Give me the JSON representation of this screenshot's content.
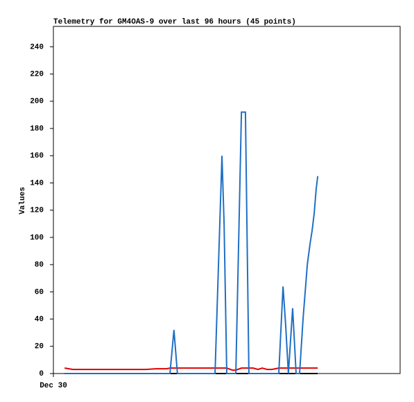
{
  "chart_data": {
    "type": "line",
    "title": "Telemetry for GM4OAS-9 over last 96 hours (45 points)",
    "y_label": "Values",
    "x": [
      4.2,
      7.3,
      11.2,
      15.1,
      19,
      22.9,
      26.8,
      30.7,
      34.6,
      38.5,
      42.4,
      43.7,
      45.2,
      46.5,
      50.2,
      54.1,
      58,
      60.6,
      63.2,
      64,
      65,
      67.1,
      68.4,
      70.5,
      72,
      73.3,
      74.9,
      76.7,
      78.3,
      80.1,
      81.9,
      84.5,
      86.1,
      87.1,
      88.1,
      89.7,
      91,
      92.3,
      93.6,
      95.2,
      96.2,
      97,
      97.8,
      98.5,
      99.1
    ],
    "xlim": [
      0,
      130
    ],
    "xticks": [
      {
        "value": 0,
        "label": "Dec 30"
      }
    ],
    "ylim": [
      0,
      255
    ],
    "yticks": [
      0,
      20,
      40,
      60,
      80,
      100,
      120,
      140,
      160,
      180,
      200,
      220,
      240
    ],
    "grid": false,
    "series": [
      {
        "color": "#000000",
        "values": [
          0,
          0,
          0,
          0,
          0,
          0,
          0,
          0,
          0,
          0,
          0,
          0,
          0,
          0,
          0,
          0,
          0,
          0,
          0,
          0,
          0,
          0,
          0,
          0,
          0,
          0,
          0,
          0,
          0,
          0,
          0,
          0,
          0,
          0,
          0,
          0,
          0,
          0,
          0,
          0,
          0,
          0,
          0,
          0,
          0
        ]
      },
      {
        "color": "#e00000",
        "values": [
          4,
          3,
          3,
          3,
          3,
          3,
          3,
          3,
          3,
          3.5,
          3.5,
          4,
          4,
          4,
          4,
          4,
          4,
          4,
          4,
          4,
          4,
          2.5,
          2.5,
          4,
          4,
          4,
          4,
          3,
          4,
          3,
          3,
          4,
          4,
          4,
          4,
          4,
          4,
          4,
          4,
          4,
          4,
          4,
          4,
          4,
          4
        ]
      },
      {
        "color": "#1f6fc5",
        "values": [
          0,
          0,
          0,
          0,
          0,
          0,
          0,
          0,
          0,
          0,
          0,
          0,
          32,
          0,
          0,
          0,
          0,
          0,
          160,
          110,
          0,
          0,
          0,
          192,
          192,
          0,
          0,
          0,
          0,
          0,
          0,
          0,
          64,
          35,
          0,
          48,
          0,
          0,
          40,
          80,
          95,
          105,
          118,
          135,
          145
        ]
      }
    ]
  }
}
